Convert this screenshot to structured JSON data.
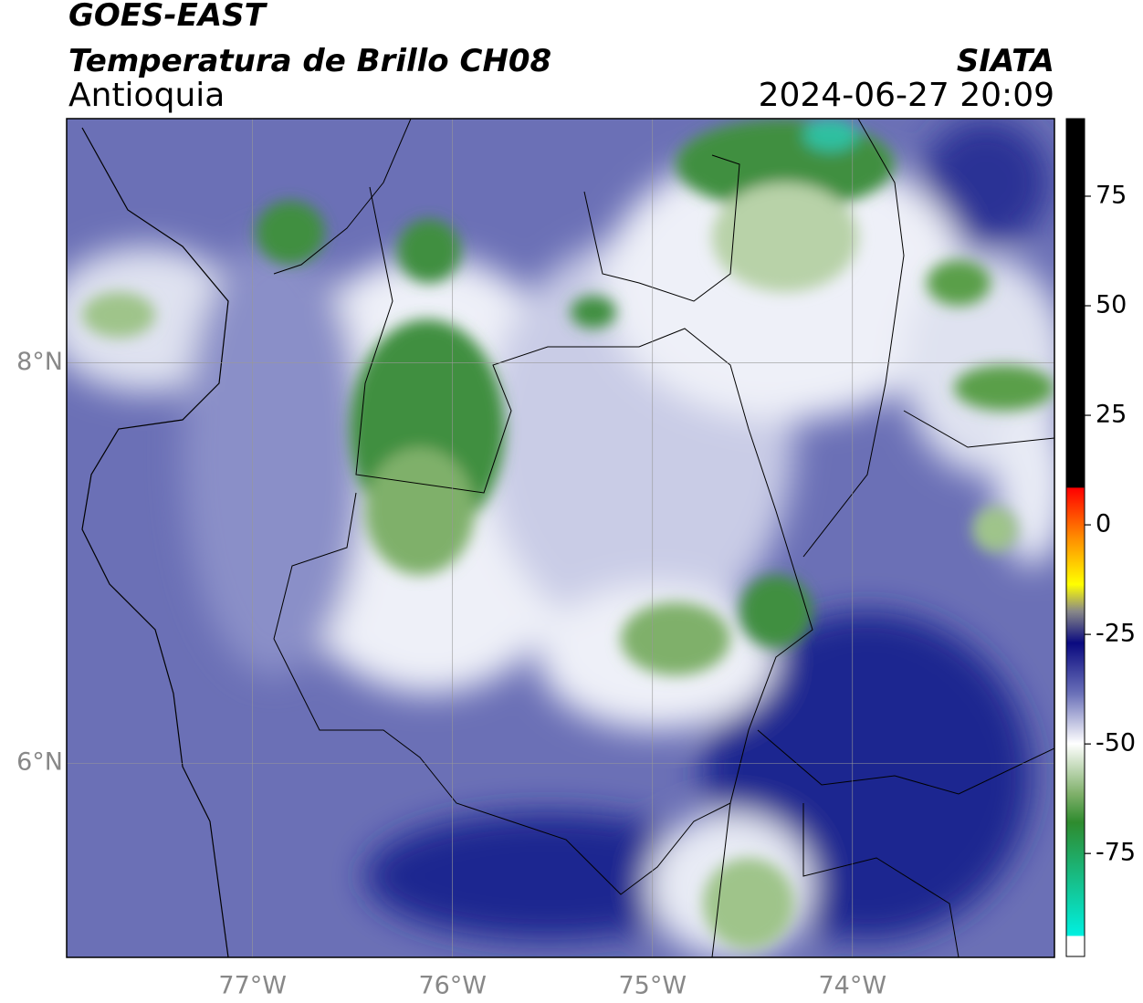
{
  "header": {
    "title": "GOES-EAST",
    "subtitle": "Temperatura de Brillo CH08",
    "region": "Antioquia",
    "source": "SIATA",
    "datetime": "2024-06-27 20:09"
  },
  "map": {
    "xlim": [
      -77.93,
      -72.99
    ],
    "ylim": [
      5.03,
      9.22
    ],
    "xticks": [
      {
        "value": -77,
        "label": "77°W"
      },
      {
        "value": -76,
        "label": "76°W"
      },
      {
        "value": -75,
        "label": "75°W"
      },
      {
        "value": -74,
        "label": "74°W"
      }
    ],
    "yticks": [
      {
        "value": 6,
        "label": "6°N"
      },
      {
        "value": 8,
        "label": "8°N"
      }
    ],
    "grid": true
  },
  "colorbar": {
    "lim": [
      -98.5,
      92.7
    ],
    "ticks": [
      75,
      50,
      25,
      0,
      -25,
      -50,
      -75
    ]
  }
}
